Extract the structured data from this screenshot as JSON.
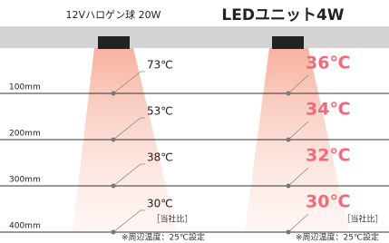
{
  "left": {
    "title": "12Vハロゲン球 20W",
    "temperatures": [
      "73℃",
      "53℃",
      "38℃",
      "30℃"
    ],
    "note": "［当社比］",
    "condition": "※周辺温度：25℃設定"
  },
  "right": {
    "title": "LEDユニット4W",
    "temperatures": [
      "36℃",
      "34℃",
      "32℃",
      "30℃"
    ],
    "note": "［当社比］",
    "condition": "※周辺温度：25℃設定"
  },
  "distances": [
    "100mm",
    "200mm",
    "300mm",
    "400mm"
  ]
}
